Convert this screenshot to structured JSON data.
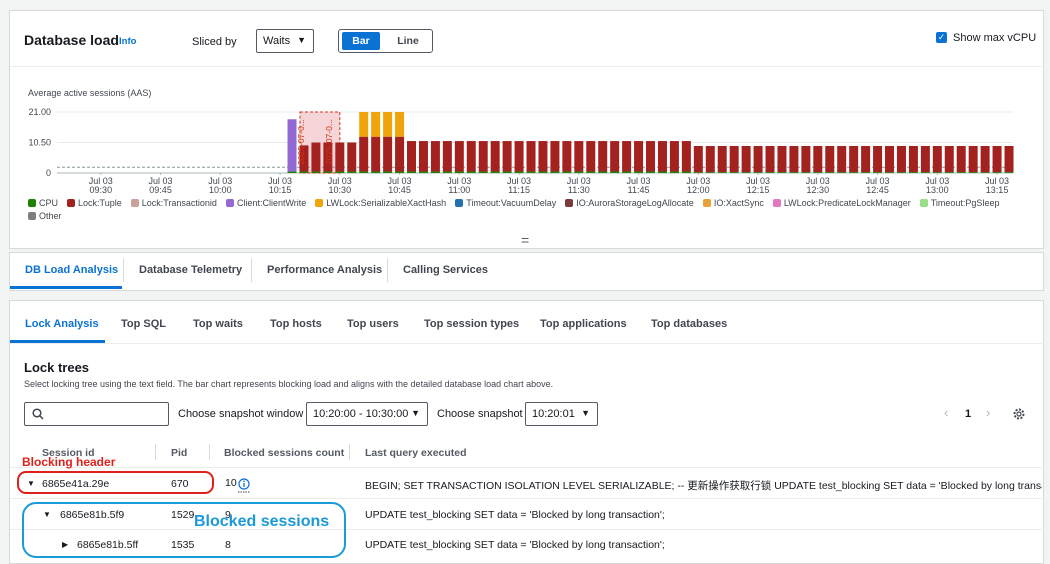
{
  "header": {
    "title": "Database load",
    "info": "Info",
    "sliced_by": "Sliced by",
    "slice_select": "Waits",
    "view_options": [
      "Bar",
      "Line"
    ],
    "show_max_vcpu": "Show max vCPU"
  },
  "chart_data": {
    "type": "bar",
    "stacked": true,
    "y_label": "Average active sessions (AAS)",
    "xlim": [
      "09:19",
      "13:19"
    ],
    "xticks": [
      {
        "value": "09:30",
        "label": "Jul 03 09:30"
      },
      {
        "value": "09:45",
        "label": "Jul 03 09:45"
      },
      {
        "value": "10:00",
        "label": "Jul 03 10:00"
      },
      {
        "value": "10:15",
        "label": "Jul 03 10:15"
      },
      {
        "value": "10:30",
        "label": "Jul 03 10:30"
      },
      {
        "value": "10:45",
        "label": "Jul 03 10:45"
      },
      {
        "value": "11:00",
        "label": "Jul 03 11:00"
      },
      {
        "value": "11:15",
        "label": "Jul 03 11:15"
      },
      {
        "value": "11:30",
        "label": "Jul 03 11:30"
      },
      {
        "value": "11:45",
        "label": "Jul 03 11:45"
      },
      {
        "value": "12:00",
        "label": "Jul 03 12:00"
      },
      {
        "value": "12:15",
        "label": "Jul 03 12:15"
      },
      {
        "value": "12:30",
        "label": "Jul 03 12:30"
      },
      {
        "value": "12:45",
        "label": "Jul 03 12:45"
      },
      {
        "value": "13:00",
        "label": "Jul 03 13:00"
      },
      {
        "value": "13:15",
        "label": "Jul 03 13:15"
      }
    ],
    "ylim": [
      0,
      21
    ],
    "yticks": [
      0,
      {
        "value": 10.5,
        "label": "10.50"
      },
      {
        "value": 21,
        "label": "21.00"
      }
    ],
    "grid": true,
    "max_vcpu": 2,
    "highlight": [
      "10:20",
      "10:30"
    ],
    "annotations": [
      {
        "x": "10:21",
        "label": "2025-07-0..."
      },
      {
        "x": "10:28",
        "label": "2025-07-0..."
      }
    ],
    "x": [
      "10:18",
      "10:21",
      "10:24",
      "10:27",
      "10:30",
      "10:33",
      "10:36",
      "10:39",
      "10:42",
      "10:45",
      "10:48",
      "10:51",
      "10:54",
      "10:57",
      "11:00",
      "11:03",
      "11:06",
      "11:09",
      "11:12",
      "11:15",
      "11:18",
      "11:21",
      "11:24",
      "11:27",
      "11:30",
      "11:33",
      "11:36",
      "11:39",
      "11:42",
      "11:45",
      "11:48",
      "11:51",
      "11:54",
      "11:57",
      "12:00",
      "12:03",
      "12:06",
      "12:09",
      "12:12",
      "12:15",
      "12:18",
      "12:21",
      "12:24",
      "12:27",
      "12:30",
      "12:33",
      "12:36",
      "12:39",
      "12:42",
      "12:45",
      "12:48",
      "12:51",
      "12:54",
      "12:57",
      "13:00",
      "13:03",
      "13:06",
      "13:09",
      "13:12",
      "13:15",
      "13:18"
    ],
    "series": [
      {
        "name": "CPU",
        "color": "#1d8102",
        "values": [
          0.5,
          0.5,
          0.5,
          0.5,
          0.5,
          0.5,
          0.5,
          0.5,
          0.5,
          0.5,
          0.5,
          0.5,
          0.5,
          0.5,
          0.5,
          0.5,
          0.5,
          0.5,
          0.5,
          0.5,
          0.5,
          0.5,
          0.5,
          0.5,
          0.5,
          0.5,
          0.5,
          0.5,
          0.5,
          0.5,
          0.5,
          0.5,
          0.5,
          0.5,
          0.3,
          0.3,
          0.3,
          0.3,
          0.3,
          0.3,
          0.3,
          0.3,
          0.3,
          0.3,
          0.3,
          0.3,
          0.3,
          0.3,
          0.3,
          0.3,
          0.3,
          0.3,
          0.3,
          0.3,
          0.3,
          0.3,
          0.3,
          0.3,
          0.3,
          0.3,
          0.3
        ]
      },
      {
        "name": "Lock:Tuple",
        "color": "#a3211f",
        "values": [
          0,
          9,
          10,
          10,
          10,
          10,
          12,
          12,
          12,
          12,
          10.5,
          10.5,
          10.5,
          10.5,
          10.5,
          10.5,
          10.5,
          10.5,
          10.5,
          10.5,
          10.5,
          10.5,
          10.5,
          10.5,
          10.5,
          10.5,
          10.5,
          10.5,
          10.5,
          10.5,
          10.5,
          10.5,
          10.5,
          10.5,
          9,
          9,
          9,
          9,
          9,
          9,
          9,
          9,
          9,
          9,
          9,
          9,
          9,
          9,
          9,
          9,
          9,
          9,
          9,
          9,
          9,
          9,
          9,
          9,
          9,
          9,
          9
        ]
      },
      {
        "name": "Lock:Transactionid",
        "color": "#c9a09a"
      },
      {
        "name": "Client:ClientWrite",
        "color": "#9469d6",
        "values": [
          18,
          0,
          0,
          0,
          0,
          0,
          0,
          0,
          0,
          0,
          0,
          0,
          0,
          0,
          0,
          0,
          0,
          0,
          0,
          0,
          0,
          0,
          0,
          0,
          0,
          0,
          0,
          0,
          0,
          0,
          0,
          0,
          0,
          0,
          0,
          0,
          0,
          0,
          0,
          0,
          0,
          0,
          0,
          0,
          0,
          0,
          0,
          0,
          0,
          0,
          0,
          0,
          0,
          0,
          0,
          0,
          0,
          0,
          0,
          0,
          0
        ]
      },
      {
        "name": "LWLock:SerializableXactHash",
        "color": "#f0a30a",
        "values": [
          0,
          0,
          0,
          0,
          0,
          0,
          8.5,
          8.5,
          8.5,
          8.5,
          0,
          0,
          0,
          0,
          0,
          0,
          0,
          0,
          0,
          0,
          0,
          0,
          0,
          0,
          0,
          0,
          0,
          0,
          0,
          0,
          0,
          0,
          0,
          0,
          0,
          0,
          0,
          0,
          0,
          0,
          0,
          0,
          0,
          0,
          0,
          0,
          0,
          0,
          0,
          0,
          0,
          0,
          0,
          0,
          0,
          0,
          0,
          0,
          0,
          0,
          0
        ]
      },
      {
        "name": "Timeout:VacuumDelay",
        "color": "#2470b3"
      },
      {
        "name": "IO:AuroraStorageLogAllocate",
        "color": "#7d3a3a"
      },
      {
        "name": "IO:XactSync",
        "color": "#e8a23a"
      },
      {
        "name": "LWLock:PredicateLockManager",
        "color": "#e377c2"
      },
      {
        "name": "Timeout:PgSleep",
        "color": "#98df8a"
      },
      {
        "name": "Other",
        "color": "#7f7f7f"
      }
    ]
  },
  "main_tabs": [
    "DB Load Analysis",
    "Database Telemetry",
    "Performance Analysis",
    "Calling Services"
  ],
  "sub_tabs": [
    "Lock Analysis",
    "Top SQL",
    "Top waits",
    "Top hosts",
    "Top users",
    "Top session types",
    "Top applications",
    "Top databases"
  ],
  "lock_trees": {
    "title": "Lock trees",
    "description": "Select locking tree using the text field. The bar chart represents blocking load and aligns with the detailed database load chart above.",
    "snapshot_window_label": "Choose snapshot window",
    "snapshot_window": "10:20:00 - 10:30:00",
    "snapshot_label": "Choose snapshot",
    "snapshot": "10:20:01",
    "page": 1
  },
  "table": {
    "columns": [
      "Session id",
      "Pid",
      "Blocked sessions count",
      "Last query executed"
    ],
    "rows": [
      [
        "6865e41a.29e",
        670,
        10,
        "BEGIN; SET TRANSACTION ISOLATION LEVEL SERIALIZABLE; -- 更新操作获取行锁 UPDATE test_blocking SET data = 'Blocked by long transaction'"
      ],
      [
        "6865e81b.5f9",
        1529,
        9,
        "UPDATE test_blocking SET data = 'Blocked by long transaction';"
      ],
      [
        "6865e81b.5ff",
        1535,
        8,
        "UPDATE test_blocking SET data = 'Blocked by long transaction';"
      ]
    ]
  },
  "callouts": {
    "blocking_header": "Blocking header",
    "blocked_sessions": "Blocked sessions"
  }
}
